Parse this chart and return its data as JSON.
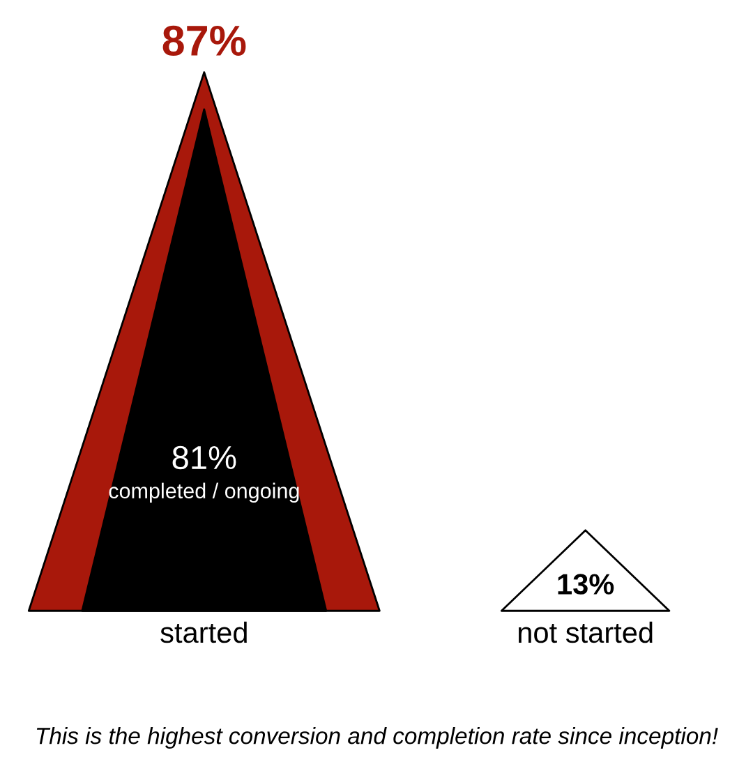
{
  "chart_data": {
    "type": "other",
    "categories": [
      "started",
      "not started"
    ],
    "series": [
      {
        "values": [
          87,
          13
        ],
        "colors": [
          "#a8180b",
          "#ffffff"
        ],
        "value_labels": [
          "87%",
          "13%"
        ]
      },
      {
        "name": "completed / ongoing",
        "color": "#000000",
        "values": [
          81,
          null
        ],
        "value_labels": [
          "81%",
          null
        ]
      }
    ],
    "annotations": [
      "This is the highest conversion and completion rate since inception!"
    ]
  }
}
